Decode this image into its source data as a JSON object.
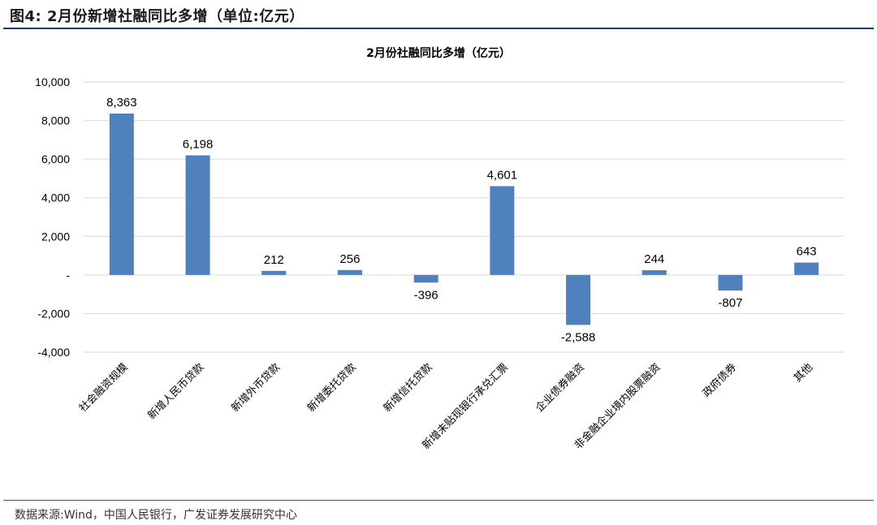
{
  "figure": {
    "title": "图4: 2月份新增社融同比多增（单位:亿元）",
    "source": "数据来源:Wind，中国人民银行，广发证券发展研究中心"
  },
  "chart_data": {
    "type": "bar",
    "title": "2月份社融同比多增（亿元）",
    "xlabel": "",
    "ylabel": "",
    "ylim": [
      -4000,
      10000
    ],
    "yticks": [
      10000,
      8000,
      6000,
      4000,
      2000,
      0,
      -2000,
      -4000
    ],
    "ytick_labels": [
      "10,000",
      "8,000",
      "6,000",
      "4,000",
      "2,000",
      "-",
      "-2,000",
      "-4,000"
    ],
    "grid": true,
    "legend": "none",
    "bar_color": "#4f81bd",
    "categories": [
      "社会融资规模",
      "新增人民币贷款",
      "新增外币贷款",
      "新增委托贷款",
      "新增信托贷款",
      "新增未贴现银行承兑汇票",
      "企业债券融资",
      "非金融企业境内股票融资",
      "政府债券",
      "其他"
    ],
    "values": [
      8363,
      6198,
      212,
      256,
      -396,
      4601,
      -2588,
      244,
      -807,
      643
    ],
    "data_labels": [
      "8,363",
      "6,198",
      "212",
      "256",
      "-396",
      "4,601",
      "-2,588",
      "244",
      "-807",
      "643"
    ]
  }
}
